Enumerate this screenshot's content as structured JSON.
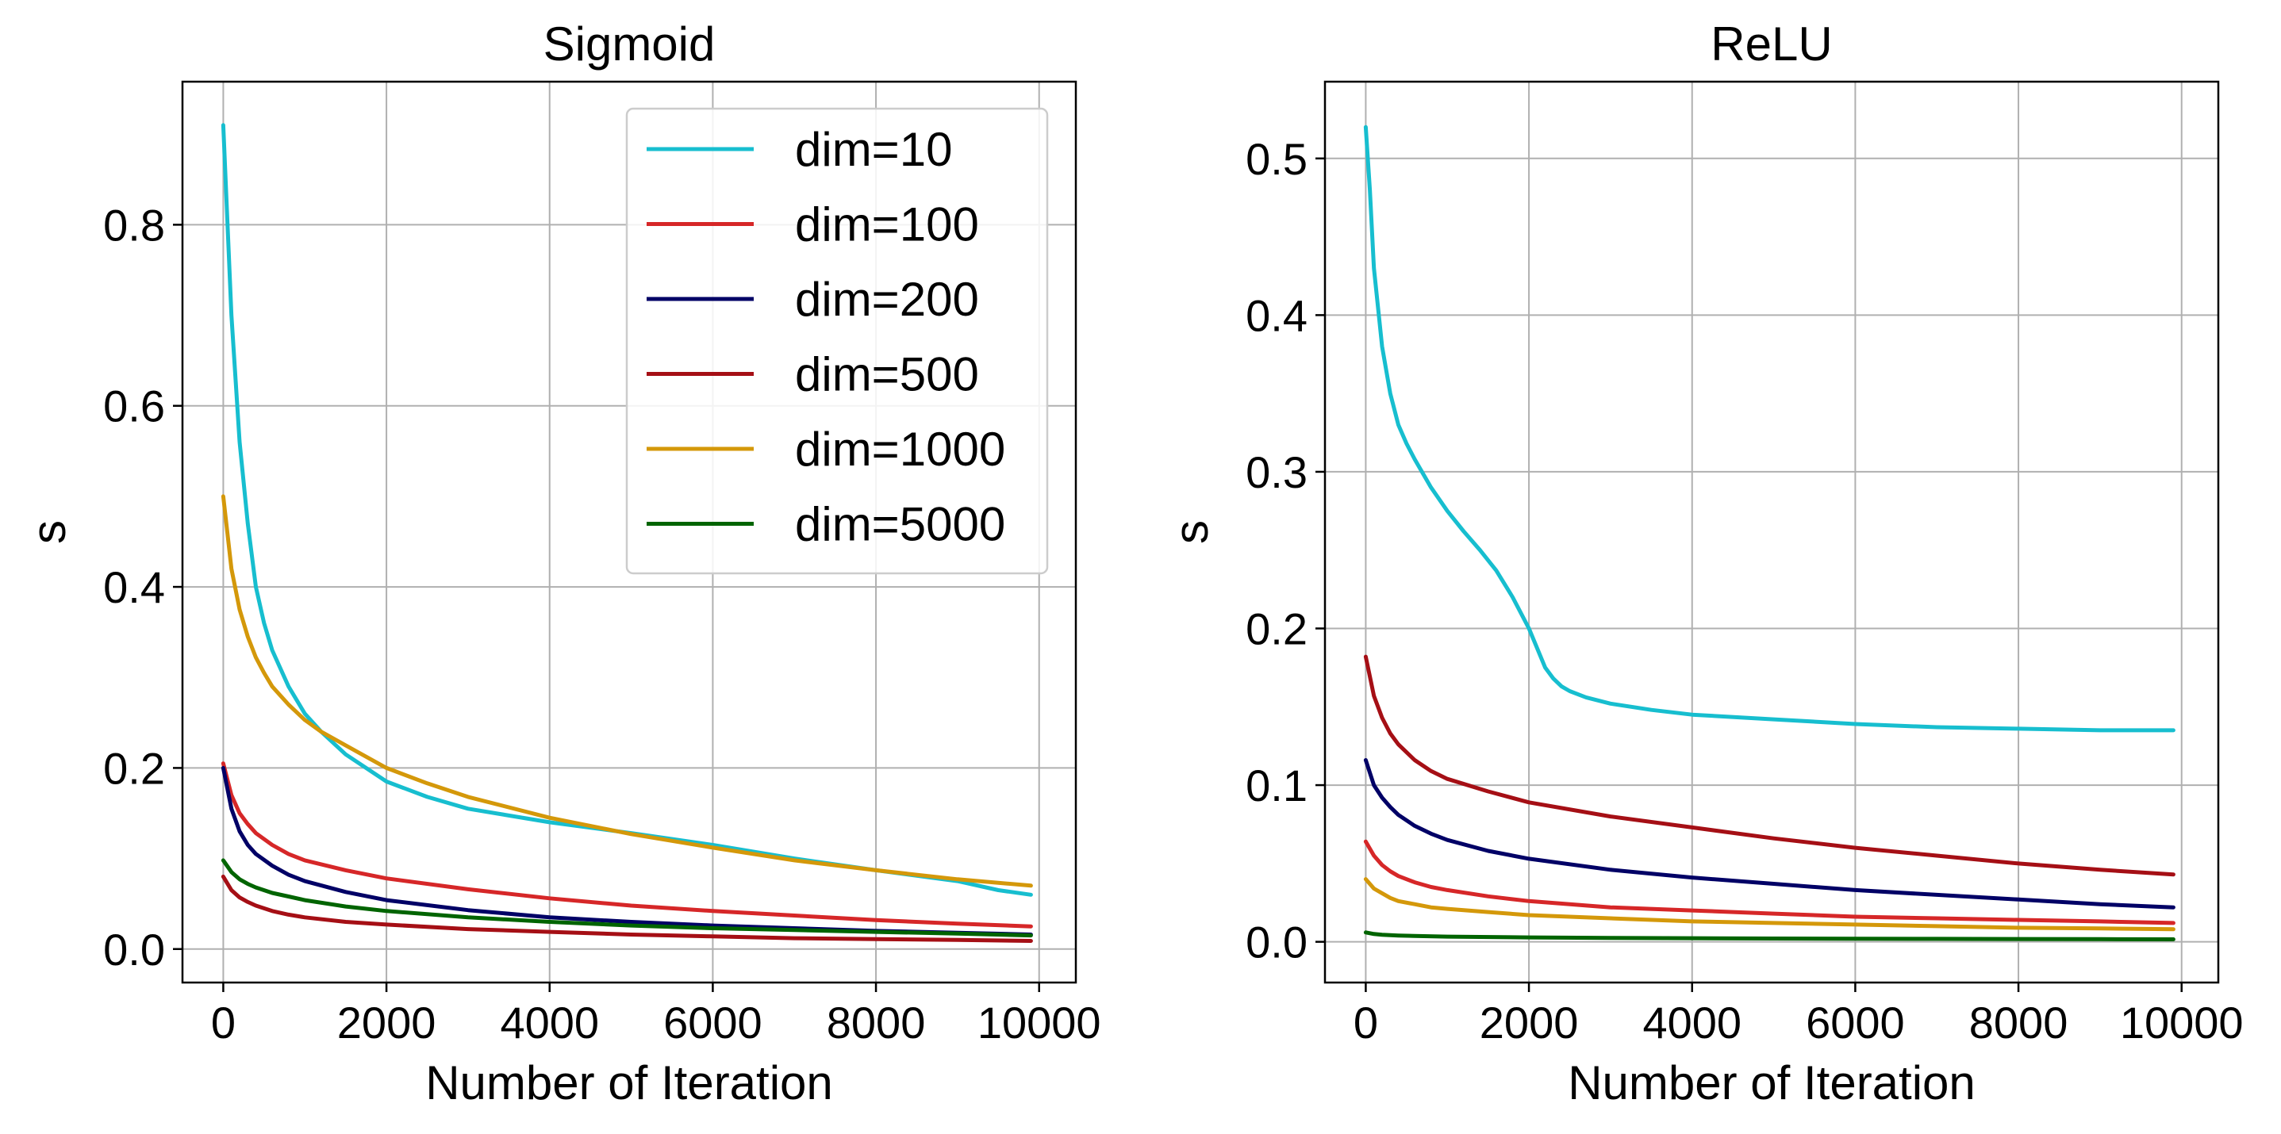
{
  "chart_data": [
    {
      "type": "line",
      "title": "Sigmoid",
      "xlabel": "Number of Iteration",
      "ylabel": "s",
      "xlim": [
        -500,
        10450
      ],
      "ylim": [
        -0.037,
        0.958
      ],
      "xticks": [
        0,
        2000,
        4000,
        6000,
        8000,
        10000
      ],
      "yticks": [
        0.0,
        0.2,
        0.4,
        0.6,
        0.8
      ],
      "xtick_labels": [
        "0",
        "2000",
        "4000",
        "6000",
        "8000",
        "10000"
      ],
      "ytick_labels": [
        "0.0",
        "0.2",
        "0.4",
        "0.6",
        "0.8"
      ],
      "grid": true,
      "legend_position": "top-right",
      "series": [
        {
          "name": "dim=10",
          "color": "#17becf",
          "x": [
            0,
            100,
            200,
            300,
            400,
            500,
            600,
            800,
            1000,
            1200,
            1500,
            2000,
            2500,
            3000,
            4000,
            5000,
            6000,
            7000,
            8000,
            9000,
            9500,
            9900
          ],
          "y": [
            0.91,
            0.7,
            0.56,
            0.47,
            0.4,
            0.36,
            0.33,
            0.29,
            0.26,
            0.24,
            0.215,
            0.185,
            0.168,
            0.155,
            0.14,
            0.128,
            0.115,
            0.1,
            0.087,
            0.075,
            0.065,
            0.06
          ]
        },
        {
          "name": "dim=100",
          "color": "#d62728",
          "x": [
            0,
            100,
            200,
            300,
            400,
            600,
            800,
            1000,
            1500,
            2000,
            3000,
            4000,
            5000,
            6000,
            7000,
            8000,
            9000,
            9900
          ],
          "y": [
            0.205,
            0.17,
            0.15,
            0.138,
            0.128,
            0.115,
            0.105,
            0.098,
            0.087,
            0.078,
            0.066,
            0.056,
            0.048,
            0.042,
            0.037,
            0.032,
            0.028,
            0.025
          ]
        },
        {
          "name": "dim=200",
          "color": "#000066",
          "x": [
            0,
            100,
            200,
            300,
            400,
            600,
            800,
            1000,
            1500,
            2000,
            3000,
            4000,
            5000,
            6000,
            7000,
            8000,
            9000,
            9900
          ],
          "y": [
            0.2,
            0.155,
            0.13,
            0.115,
            0.105,
            0.092,
            0.082,
            0.075,
            0.063,
            0.054,
            0.043,
            0.035,
            0.03,
            0.026,
            0.023,
            0.02,
            0.018,
            0.016
          ]
        },
        {
          "name": "dim=500",
          "color": "#a50f15",
          "x": [
            0,
            100,
            200,
            300,
            400,
            600,
            800,
            1000,
            1500,
            2000,
            3000,
            4000,
            5000,
            6000,
            7000,
            8000,
            9000,
            9900
          ],
          "y": [
            0.08,
            0.065,
            0.057,
            0.052,
            0.048,
            0.042,
            0.038,
            0.035,
            0.03,
            0.027,
            0.022,
            0.019,
            0.016,
            0.014,
            0.012,
            0.011,
            0.01,
            0.009
          ]
        },
        {
          "name": "dim=1000",
          "color": "#d4980a",
          "x": [
            0,
            100,
            200,
            300,
            400,
            500,
            600,
            800,
            1000,
            1200,
            1500,
            2000,
            2500,
            3000,
            4000,
            5000,
            6000,
            7000,
            8000,
            9000,
            9900
          ],
          "y": [
            0.5,
            0.42,
            0.375,
            0.345,
            0.322,
            0.305,
            0.29,
            0.27,
            0.253,
            0.24,
            0.225,
            0.2,
            0.183,
            0.168,
            0.145,
            0.127,
            0.112,
            0.098,
            0.087,
            0.077,
            0.07
          ]
        },
        {
          "name": "dim=5000",
          "color": "#006400",
          "x": [
            0,
            100,
            200,
            300,
            400,
            600,
            800,
            1000,
            1500,
            2000,
            3000,
            4000,
            5000,
            6000,
            7000,
            8000,
            9000,
            9900
          ],
          "y": [
            0.098,
            0.085,
            0.077,
            0.072,
            0.068,
            0.062,
            0.058,
            0.054,
            0.047,
            0.042,
            0.035,
            0.03,
            0.026,
            0.023,
            0.021,
            0.019,
            0.017,
            0.015
          ]
        }
      ]
    },
    {
      "type": "line",
      "title": "ReLU",
      "xlabel": "Number of Iteration",
      "ylabel": "s",
      "xlim": [
        -500,
        10450
      ],
      "ylim": [
        -0.026,
        0.549
      ],
      "xticks": [
        0,
        2000,
        4000,
        6000,
        8000,
        10000
      ],
      "yticks": [
        0.0,
        0.1,
        0.2,
        0.3,
        0.4,
        0.5
      ],
      "xtick_labels": [
        "0",
        "2000",
        "4000",
        "6000",
        "8000",
        "10000"
      ],
      "ytick_labels": [
        "0.0",
        "0.1",
        "0.2",
        "0.3",
        "0.4",
        "0.5"
      ],
      "grid": true,
      "series": [
        {
          "name": "dim=10",
          "color": "#17becf",
          "x": [
            0,
            50,
            100,
            200,
            300,
            400,
            500,
            600,
            800,
            1000,
            1200,
            1400,
            1600,
            1800,
            2000,
            2200,
            2300,
            2400,
            2500,
            2700,
            3000,
            3500,
            4000,
            5000,
            6000,
            7000,
            8000,
            9000,
            9900
          ],
          "y": [
            0.52,
            0.48,
            0.43,
            0.38,
            0.35,
            0.33,
            0.318,
            0.308,
            0.29,
            0.275,
            0.262,
            0.25,
            0.237,
            0.22,
            0.2,
            0.175,
            0.168,
            0.163,
            0.16,
            0.156,
            0.152,
            0.148,
            0.145,
            0.142,
            0.139,
            0.137,
            0.136,
            0.135,
            0.135
          ]
        },
        {
          "name": "dim=100",
          "color": "#d62728",
          "x": [
            0,
            100,
            200,
            300,
            400,
            600,
            800,
            1000,
            1500,
            2000,
            3000,
            4000,
            5000,
            6000,
            7000,
            8000,
            9000,
            9900
          ],
          "y": [
            0.064,
            0.055,
            0.049,
            0.045,
            0.042,
            0.038,
            0.035,
            0.033,
            0.029,
            0.026,
            0.022,
            0.02,
            0.018,
            0.016,
            0.015,
            0.014,
            0.013,
            0.012
          ]
        },
        {
          "name": "dim=200",
          "color": "#000066",
          "x": [
            0,
            100,
            200,
            300,
            400,
            600,
            800,
            1000,
            1500,
            2000,
            3000,
            4000,
            5000,
            6000,
            7000,
            8000,
            9000,
            9900
          ],
          "y": [
            0.116,
            0.1,
            0.092,
            0.086,
            0.081,
            0.074,
            0.069,
            0.065,
            0.058,
            0.053,
            0.046,
            0.041,
            0.037,
            0.033,
            0.03,
            0.027,
            0.024,
            0.022
          ]
        },
        {
          "name": "dim=500",
          "color": "#a50f15",
          "x": [
            0,
            100,
            200,
            300,
            400,
            600,
            800,
            1000,
            1500,
            2000,
            3000,
            4000,
            5000,
            6000,
            7000,
            8000,
            9000,
            9900
          ],
          "y": [
            0.182,
            0.157,
            0.143,
            0.133,
            0.126,
            0.116,
            0.109,
            0.104,
            0.096,
            0.089,
            0.08,
            0.073,
            0.066,
            0.06,
            0.055,
            0.05,
            0.046,
            0.043
          ]
        },
        {
          "name": "dim=1000",
          "color": "#d4980a",
          "x": [
            0,
            100,
            200,
            300,
            400,
            600,
            800,
            1000,
            1500,
            2000,
            3000,
            4000,
            5000,
            6000,
            7000,
            8000,
            9000,
            9900
          ],
          "y": [
            0.04,
            0.034,
            0.031,
            0.028,
            0.026,
            0.024,
            0.022,
            0.021,
            0.019,
            0.017,
            0.015,
            0.013,
            0.012,
            0.011,
            0.01,
            0.009,
            0.0085,
            0.008
          ]
        },
        {
          "name": "dim=5000",
          "color": "#006400",
          "x": [
            0,
            100,
            200,
            400,
            600,
            1000,
            2000,
            3000,
            4000,
            5000,
            6000,
            7000,
            8000,
            9000,
            9900
          ],
          "y": [
            0.006,
            0.005,
            0.0045,
            0.004,
            0.0037,
            0.0033,
            0.0028,
            0.0025,
            0.0023,
            0.0021,
            0.002,
            0.0019,
            0.0018,
            0.0017,
            0.0016
          ]
        }
      ]
    }
  ]
}
